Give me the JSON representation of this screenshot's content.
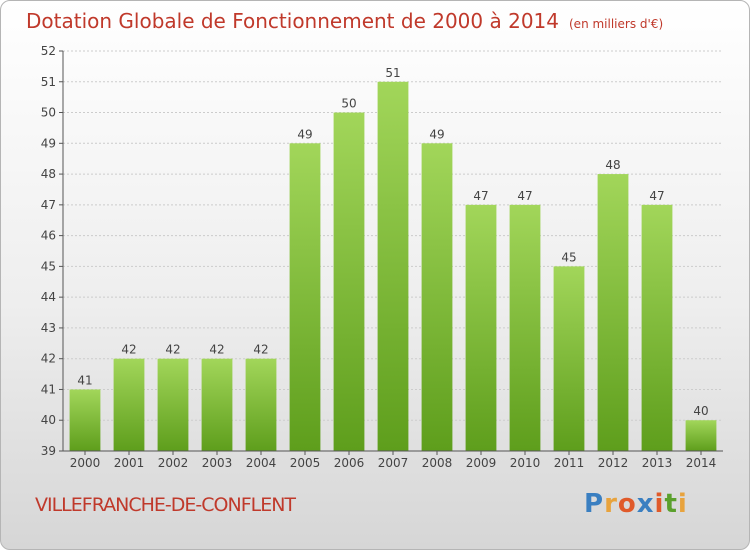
{
  "title": "Dotation Globale de Fonctionnement de 2000 à 2014",
  "unit_note": "(en milliers d'€)",
  "commune": "VILLEFRANCHE-DE-CONFLENT",
  "logo": {
    "text": "Proxiti",
    "letter_colors": [
      "#3a7fc1",
      "#e8a33d",
      "#e05a2a",
      "#3a7fc1",
      "#e05a2a",
      "#5aa02c",
      "#e8a33d"
    ]
  },
  "colors": {
    "title": "#c0392b",
    "bar_top": "#a2d65a",
    "bar_bottom": "#5e9e1c",
    "axis": "#555555",
    "grid": "#cccccc"
  },
  "chart_data": {
    "type": "bar",
    "categories": [
      "2000",
      "2001",
      "2002",
      "2003",
      "2004",
      "2005",
      "2006",
      "2007",
      "2008",
      "2009",
      "2010",
      "2011",
      "2012",
      "2013",
      "2014"
    ],
    "values": [
      41,
      42,
      42,
      42,
      42,
      49,
      50,
      51,
      49,
      47,
      47,
      45,
      48,
      47,
      40
    ],
    "ylim": [
      39,
      52
    ],
    "yticks": [
      39,
      40,
      41,
      42,
      43,
      44,
      45,
      46,
      47,
      48,
      49,
      50,
      51,
      52
    ],
    "grid": true,
    "data_labels": true
  }
}
